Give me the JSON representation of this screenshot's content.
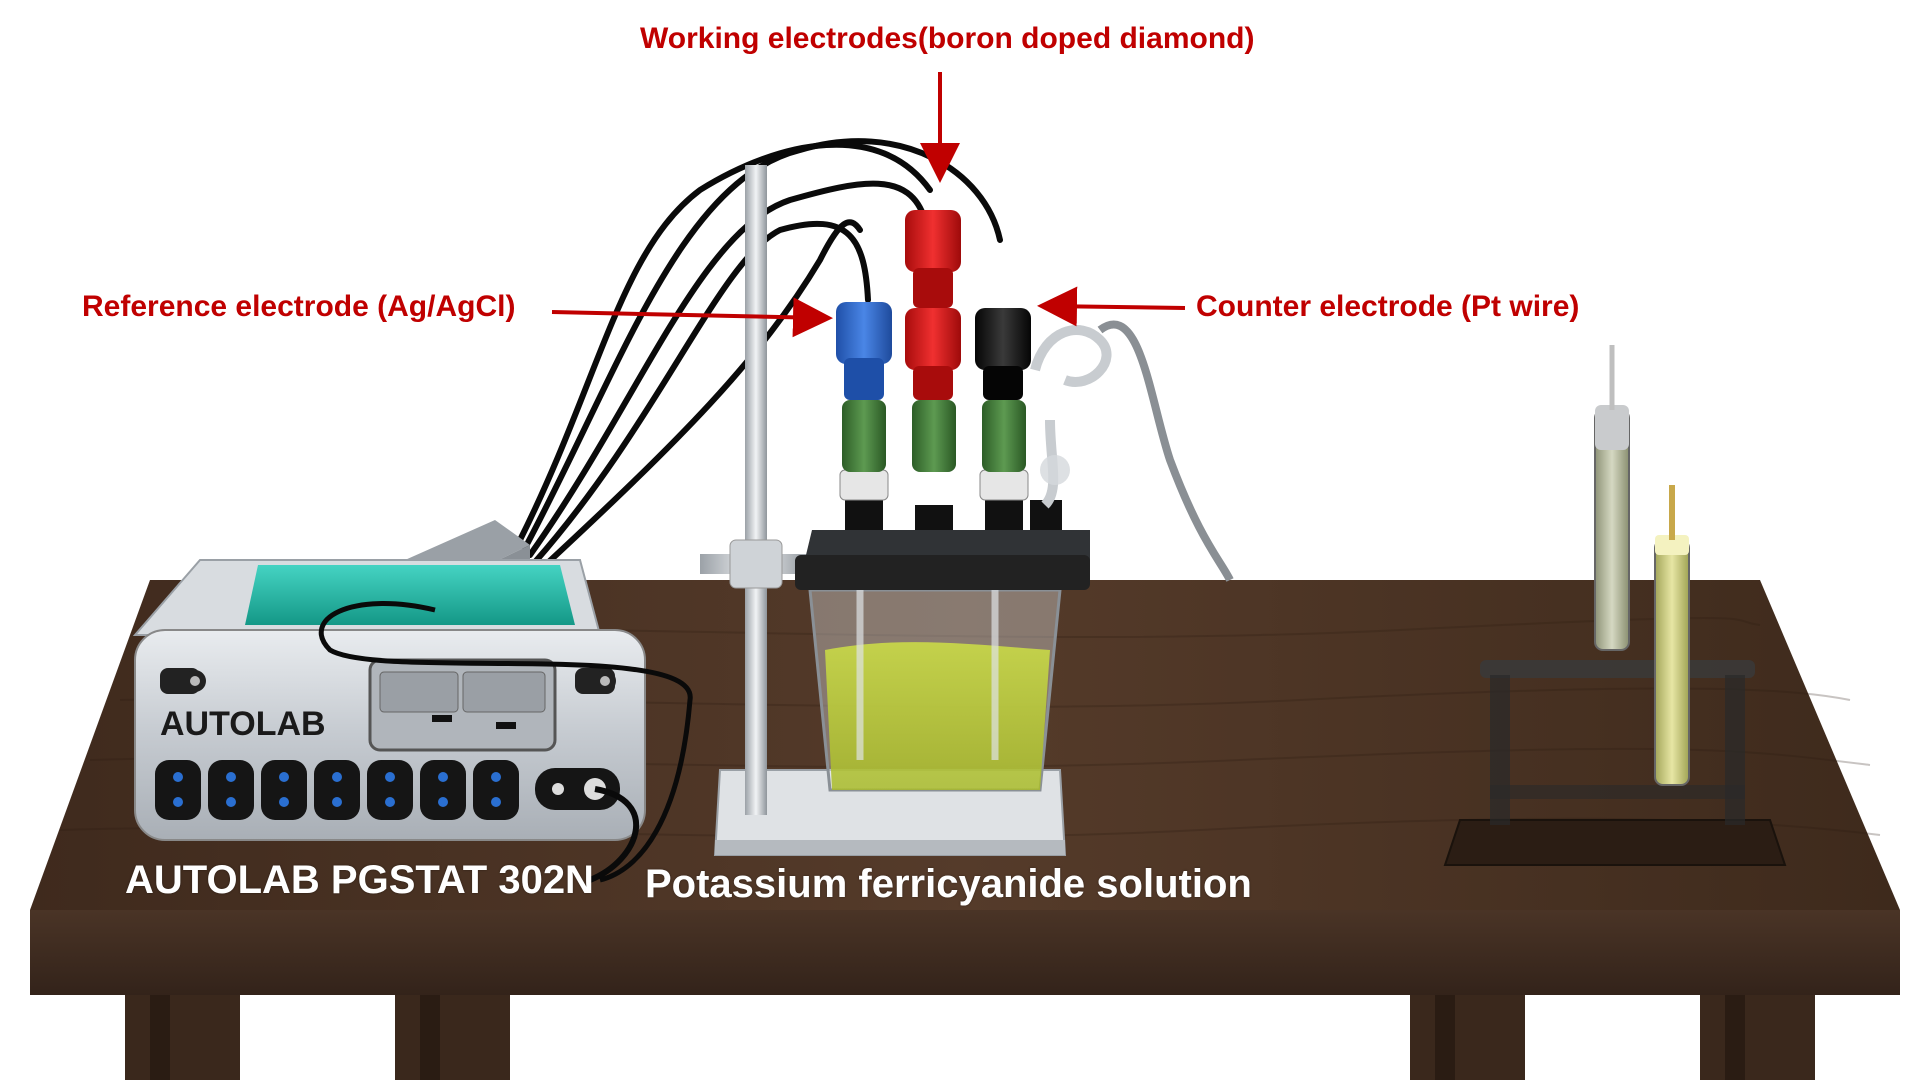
{
  "labels": {
    "working": "Working electrodes(boron doped diamond)",
    "reference": "Reference electrode (Ag/AgCl)",
    "counter": "Counter electrode (Pt wire)",
    "instrument_model": "AUTOLAB PGSTAT 302N",
    "instrument_brand": "AUTOLAB",
    "solution": "Potassium ferricyanide solution"
  },
  "colors": {
    "label_red": "#c00000",
    "table_wood": "#4a3426",
    "reference_clip": "#2f67c9",
    "working_clip": "#d11616",
    "counter_clip": "#111111",
    "connector_green": "#3f7a36",
    "solution_yellow": "#c9d648",
    "instrument_body": "#cfd3d8",
    "instrument_top": "#1fb5a6"
  }
}
